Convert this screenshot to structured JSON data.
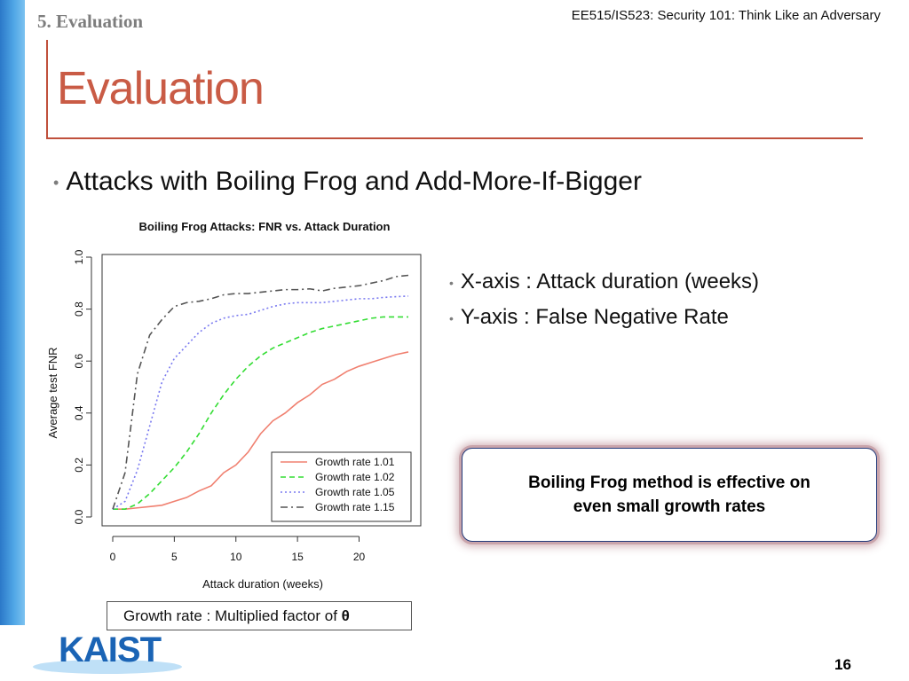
{
  "header": {
    "section_label": "5. Evaluation",
    "course_title": "EE515/IS523: Security 101: Think Like an Adversary"
  },
  "slide": {
    "title": "Evaluation",
    "main_bullet": "Attacks with Boiling Frog and Add-More-If-Bigger",
    "side_bullets": [
      "X-axis : Attack duration (weeks)",
      "Y-axis : False Negative Rate"
    ],
    "callout_text": "Boiling Frog method is effective on even small growth rates",
    "growth_note_prefix": "Growth rate : Multiplied factor of ",
    "growth_note_symbol": "θ",
    "logo_text": "KAIST",
    "page_number": "16"
  },
  "colors": {
    "accent": "#c95b45",
    "sidebar_blue": "#4fa6e6",
    "logo_blue": "#1b64b5"
  },
  "chart_data": {
    "type": "line",
    "title": "Boiling Frog Attacks: FNR vs. Attack Duration",
    "xlabel": "Attack duration (weeks)",
    "ylabel": "Average test FNR",
    "xlim": [
      0,
      24
    ],
    "ylim": [
      0,
      1.0
    ],
    "xticks": [
      "0",
      "5",
      "10",
      "15",
      "20"
    ],
    "yticks": [
      "0.0",
      "0.2",
      "0.4",
      "0.6",
      "0.8",
      "1.0"
    ],
    "legend_position": "bottom-right",
    "grid": false,
    "x": [
      0,
      1,
      2,
      3,
      4,
      5,
      6,
      7,
      8,
      9,
      10,
      11,
      12,
      13,
      14,
      15,
      16,
      17,
      18,
      19,
      20,
      21,
      22,
      23,
      24
    ],
    "series": [
      {
        "name": "Growth rate 1.01",
        "color": "#f08070",
        "dash": "solid",
        "values": [
          0.03,
          0.03,
          0.035,
          0.04,
          0.045,
          0.06,
          0.075,
          0.1,
          0.12,
          0.17,
          0.2,
          0.25,
          0.32,
          0.37,
          0.4,
          0.44,
          0.47,
          0.51,
          0.53,
          0.56,
          0.58,
          0.595,
          0.61,
          0.625,
          0.635
        ]
      },
      {
        "name": "Growth rate 1.02",
        "color": "#33dd33",
        "dash": "dashed",
        "values": [
          0.03,
          0.03,
          0.05,
          0.09,
          0.14,
          0.19,
          0.25,
          0.32,
          0.4,
          0.47,
          0.53,
          0.58,
          0.62,
          0.65,
          0.67,
          0.69,
          0.71,
          0.725,
          0.735,
          0.745,
          0.755,
          0.765,
          0.77,
          0.77,
          0.77
        ]
      },
      {
        "name": "Growth rate 1.05",
        "color": "#7a7af0",
        "dash": "dotted",
        "values": [
          0.03,
          0.06,
          0.18,
          0.35,
          0.52,
          0.61,
          0.66,
          0.71,
          0.745,
          0.765,
          0.775,
          0.78,
          0.795,
          0.81,
          0.82,
          0.825,
          0.825,
          0.825,
          0.83,
          0.835,
          0.84,
          0.84,
          0.845,
          0.848,
          0.85
        ]
      },
      {
        "name": "Growth rate 1.15",
        "color": "#555555",
        "dash": "dashdot",
        "values": [
          0.03,
          0.17,
          0.55,
          0.7,
          0.76,
          0.81,
          0.825,
          0.83,
          0.84,
          0.855,
          0.86,
          0.86,
          0.865,
          0.87,
          0.875,
          0.875,
          0.878,
          0.87,
          0.88,
          0.885,
          0.89,
          0.9,
          0.91,
          0.925,
          0.93
        ]
      }
    ]
  }
}
